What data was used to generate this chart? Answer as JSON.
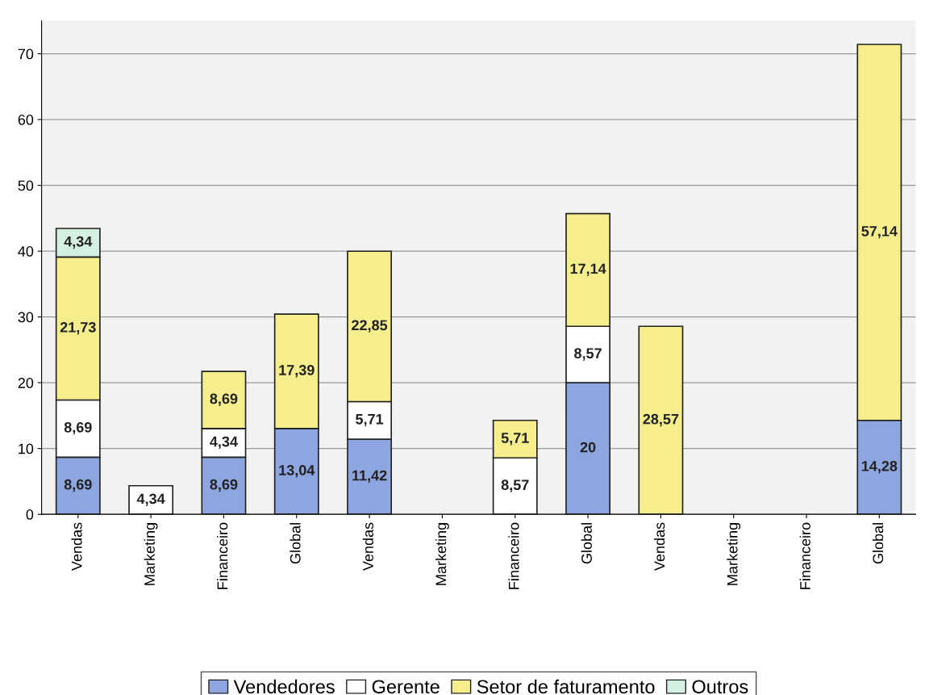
{
  "chart_data": {
    "type": "bar",
    "stacked": true,
    "categories": [
      "Vendas",
      "Marketing",
      "Financeiro",
      "Global",
      "Vendas",
      "Marketing",
      "Financeiro",
      "Global",
      "Vendas",
      "Marketing",
      "Financeiro",
      "Global"
    ],
    "series": [
      {
        "name": "Vendedores",
        "color": "#8ea6e0",
        "values": [
          8.69,
          null,
          8.69,
          13.04,
          11.42,
          null,
          null,
          20,
          null,
          null,
          null,
          14.28
        ],
        "value_labels": [
          "8,69",
          null,
          "8,69",
          "13,04",
          "11,42",
          null,
          null,
          "20",
          null,
          null,
          null,
          "14,28"
        ]
      },
      {
        "name": "Gerente",
        "color": "#ffffff",
        "values": [
          8.69,
          4.34,
          4.34,
          null,
          5.71,
          null,
          8.57,
          8.57,
          null,
          null,
          null,
          null
        ],
        "value_labels": [
          "8,69",
          "4,34",
          "4,34",
          null,
          "5,71",
          null,
          "8,57",
          "8,57",
          null,
          null,
          null,
          null
        ]
      },
      {
        "name": "Setor de faturamento",
        "color": "#f6ee8c",
        "values": [
          21.73,
          null,
          8.69,
          17.39,
          22.85,
          null,
          5.71,
          17.14,
          28.57,
          null,
          null,
          57.14
        ],
        "value_labels": [
          "21,73",
          null,
          "8,69",
          "17,39",
          "22,85",
          null,
          "5,71",
          "17,14",
          "28,57",
          null,
          null,
          "57,14"
        ]
      },
      {
        "name": "Outros",
        "color": "#d4f0e2",
        "values": [
          4.34,
          null,
          null,
          null,
          null,
          null,
          null,
          null,
          null,
          null,
          null,
          null
        ],
        "value_labels": [
          "4,34",
          null,
          null,
          null,
          null,
          null,
          null,
          null,
          null,
          null,
          null,
          null
        ]
      }
    ],
    "ylim": [
      0,
      75
    ],
    "yticks": [
      0,
      10,
      20,
      30,
      40,
      50,
      60,
      70
    ],
    "grid": "y",
    "legend": "bottom"
  }
}
